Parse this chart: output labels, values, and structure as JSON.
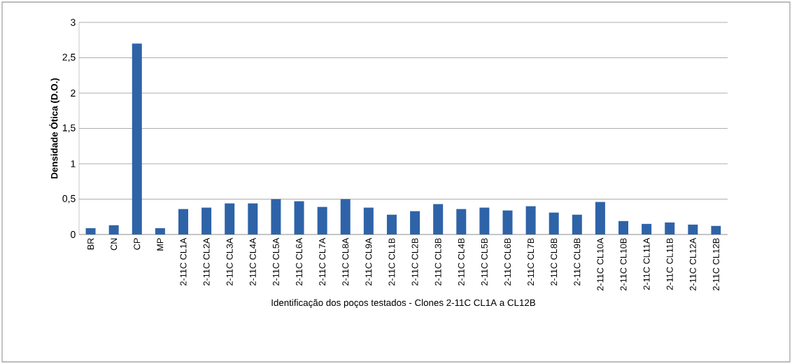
{
  "chart_data": {
    "type": "bar",
    "xlabel": "Identificação  dos poços testados - Clones 2-11C CL1A a CL12B",
    "ylabel": "Densidade Ótica (D.O.)",
    "categories": [
      "BR",
      "CN",
      "CP",
      "MP",
      "2-11C CL1A",
      "2-11C CL2A",
      "2-11C CL3A",
      "2-11C CL4A",
      "2-11C CL5A",
      "2-11C CL6A",
      "2-11C CL7A",
      "2-11C CL8A",
      "2-11C CL9A",
      "2-11C CL1B",
      "2-11C CL2B",
      "2-11C CL3B",
      "2-11C CL4B",
      "2-11C CL5B",
      "2-11C CL6B",
      "2-11C CL7B",
      "2-11C CL8B",
      "2-11C CL9B",
      "2-11C CL10A",
      "2-11C CL10B",
      "2-11C CL11A",
      "2-11C CL11B",
      "2-11C CL12A",
      "2-11C CL12B"
    ],
    "values": [
      0.09,
      0.13,
      2.7,
      0.09,
      0.36,
      0.38,
      0.44,
      0.44,
      0.5,
      0.47,
      0.39,
      0.5,
      0.38,
      0.28,
      0.33,
      0.43,
      0.36,
      0.38,
      0.34,
      0.4,
      0.31,
      0.28,
      0.46,
      0.19,
      0.15,
      0.17,
      0.14,
      0.12
    ],
    "color": "#2e63a8",
    "ylim": [
      0,
      3
    ],
    "yticks": [
      0,
      {
        "value": 0.5,
        "label": "0,5"
      },
      1,
      {
        "value": 1.5,
        "label": "1,5"
      },
      2,
      {
        "value": 2.5,
        "label": "2,5"
      },
      3
    ],
    "grid": "y"
  }
}
